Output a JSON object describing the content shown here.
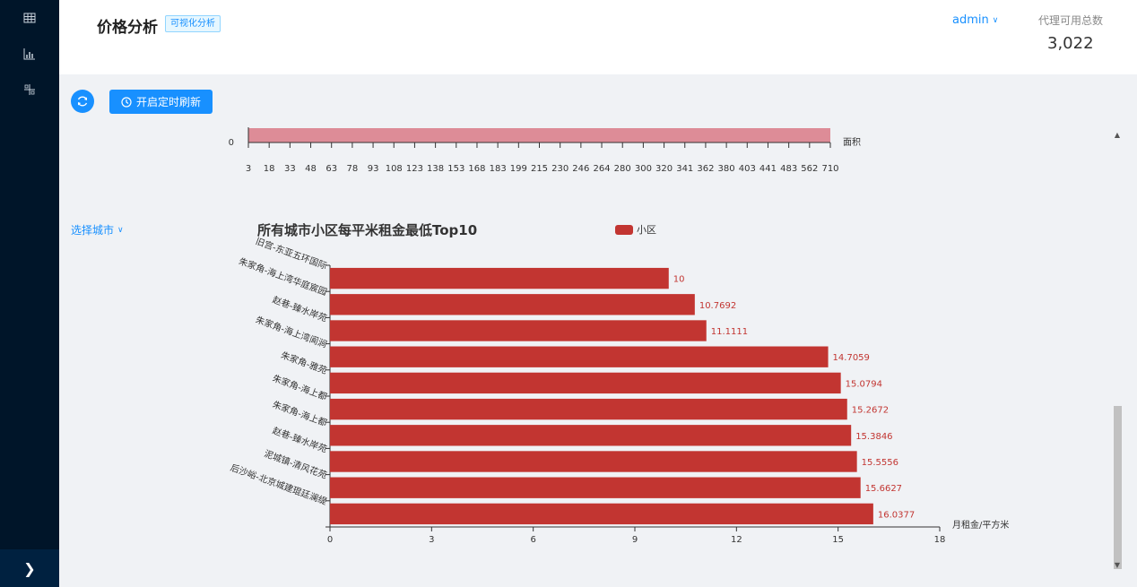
{
  "header": {
    "title": "价格分析",
    "tag": "可视化分析",
    "user": "admin",
    "stat_label": "代理可用总数",
    "stat_value": "3,022"
  },
  "toolbar": {
    "timer_button": "开启定时刷新"
  },
  "filters": {
    "city_select": "选择城市"
  },
  "sidebar": {
    "icons": [
      "table-icon",
      "bar-chart-icon",
      "grid-icon"
    ]
  },
  "chart_data": [
    {
      "type": "bar",
      "partial": true,
      "xlabel": "面积",
      "y_ticks": [
        "0"
      ],
      "categories": [
        "3",
        "18",
        "33",
        "48",
        "63",
        "78",
        "93",
        "108",
        "123",
        "138",
        "153",
        "168",
        "183",
        "199",
        "215",
        "230",
        "246",
        "264",
        "280",
        "300",
        "320",
        "341",
        "362",
        "380",
        "403",
        "441",
        "483",
        "562",
        "710"
      ]
    },
    {
      "type": "bar",
      "orientation": "horizontal",
      "title": "所有城市小区每平米租金最低Top10",
      "legend": "小区",
      "legend_position": "top",
      "xlabel": "月租金/平方米",
      "xlim": [
        0,
        18
      ],
      "x_ticks": [
        "0",
        "3",
        "6",
        "9",
        "12",
        "15",
        "18"
      ],
      "categories": [
        "旧宫-东亚五环国际",
        "朱家角-海上湾华庭宸园",
        "赵巷-臻水岸苑",
        "朱家角-海上湾阆涧",
        "朱家角-雅苑",
        "朱家角-海上都",
        "朱家角-海上都",
        "赵巷-臻水岸苑",
        "泥城镇-清风花苑",
        "后沙峪-北京城建琨廷澜缇"
      ],
      "values": [
        10,
        10.7692,
        11.1111,
        14.7059,
        15.0794,
        15.2672,
        15.3846,
        15.5556,
        15.6627,
        16.0377
      ],
      "value_labels": [
        "10",
        "10.7692",
        "11.1111",
        "14.7059",
        "15.0794",
        "15.2672",
        "15.3846",
        "15.5556",
        "15.6627",
        "16.0377"
      ],
      "color": "#c23531"
    }
  ]
}
